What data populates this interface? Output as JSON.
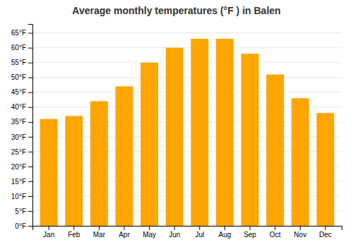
{
  "chart_data": {
    "type": "bar",
    "title": "Average monthly temperatures (°F ) in Balen",
    "categories": [
      "Jan",
      "Feb",
      "Mar",
      "Apr",
      "May",
      "Jun",
      "Jul",
      "Aug",
      "Sep",
      "Oct",
      "Nov",
      "Dec"
    ],
    "values": [
      36,
      37,
      42,
      47,
      55,
      60,
      63,
      63,
      58,
      51,
      43,
      38
    ],
    "color": "#FFA500",
    "ylim": [
      0,
      68
    ],
    "yticks": [
      {
        "value": 0,
        "label": "0°F"
      },
      {
        "value": 5,
        "label": "5°F"
      },
      {
        "value": 10,
        "label": "10°F"
      },
      {
        "value": 15,
        "label": "15°F"
      },
      {
        "value": 20,
        "label": "20°F"
      },
      {
        "value": 25,
        "label": "25°F"
      },
      {
        "value": 30,
        "label": "30°F"
      },
      {
        "value": 35,
        "label": "35°F"
      },
      {
        "value": 40,
        "label": "40°F"
      },
      {
        "value": 45,
        "label": "45°F"
      },
      {
        "value": 50,
        "label": "50°F"
      },
      {
        "value": 55,
        "label": "55°F"
      },
      {
        "value": 60,
        "label": "60°F"
      },
      {
        "value": 65,
        "label": "65°F"
      }
    ],
    "grid": true
  }
}
